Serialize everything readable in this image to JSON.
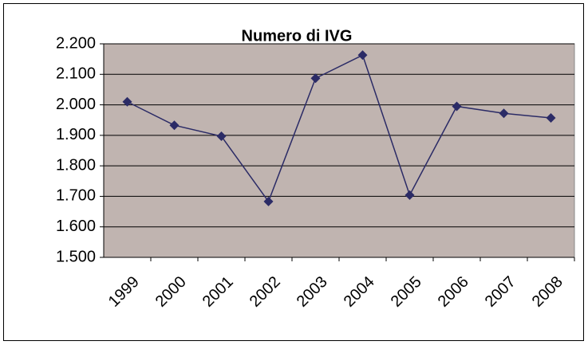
{
  "chart_data": {
    "type": "line",
    "title": "Numero di IVG",
    "categories": [
      "1999",
      "2000",
      "2001",
      "2002",
      "2003",
      "2004",
      "2005",
      "2006",
      "2007",
      "2008"
    ],
    "series": [
      {
        "name": null,
        "color": "#2b2b66",
        "values": [
          2010,
          1933,
          1897,
          1683,
          2087,
          2163,
          1704,
          1995,
          1972,
          1957
        ]
      }
    ],
    "ylim": [
      1500,
      2200
    ],
    "yticks": [
      {
        "value": 1500,
        "label": "1.500"
      },
      {
        "value": 1600,
        "label": "1.600"
      },
      {
        "value": 1700,
        "label": "1.700"
      },
      {
        "value": 1800,
        "label": "1.800"
      },
      {
        "value": 1900,
        "label": "1.900"
      },
      {
        "value": 2000,
        "label": "2.000"
      },
      {
        "value": 2100,
        "label": "2.100"
      },
      {
        "value": 2200,
        "label": "2.200"
      }
    ],
    "grid": true,
    "plot_background": "#c0b4b0"
  }
}
